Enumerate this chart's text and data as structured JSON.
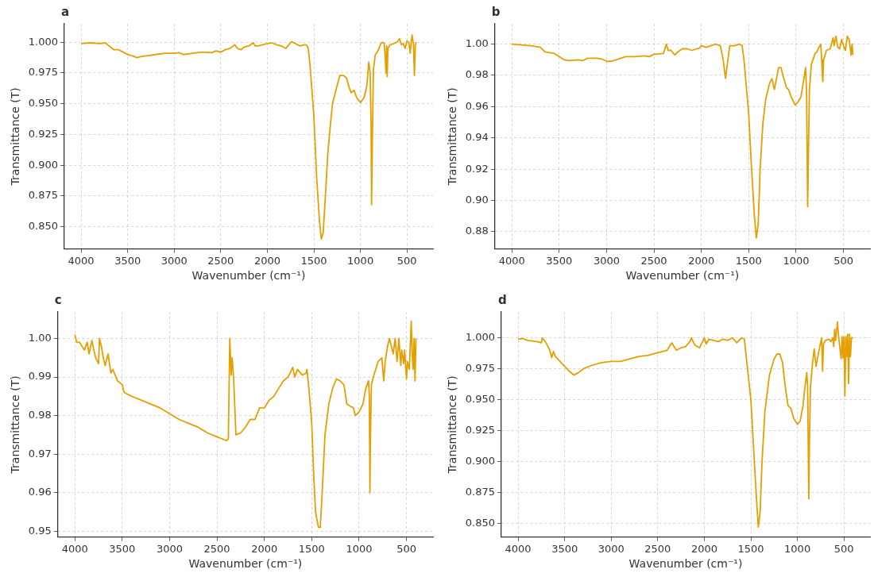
{
  "chart_data": [
    {
      "type": "line",
      "title": "a",
      "xlabel": "Wavenumber (cm⁻¹)",
      "ylabel": "Transmittance (T)",
      "color": "#e69f00",
      "grid": true,
      "xlim": [
        4180,
        220
      ],
      "xticks": [
        4000,
        3500,
        3000,
        2500,
        2000,
        1500,
        1000,
        500
      ],
      "ylim": [
        0.832,
        1.015
      ],
      "yticks": [
        {
          "value": 0.85,
          "label": "0.850"
        },
        {
          "value": 0.875,
          "label": "0.875"
        },
        {
          "value": 0.9,
          "label": "0.900"
        },
        {
          "value": 0.925,
          "label": "0.925"
        },
        {
          "value": 0.95,
          "label": "0.950"
        },
        {
          "value": 0.975,
          "label": "0.975"
        },
        {
          "value": 1.0,
          "label": "1.000"
        }
      ],
      "x": [
        4000,
        3900,
        3800,
        3740,
        3700,
        3650,
        3600,
        3550,
        3500,
        3450,
        3400,
        3350,
        3300,
        3200,
        3100,
        3000,
        2950,
        2900,
        2800,
        2700,
        2600,
        2550,
        2500,
        2450,
        2400,
        2350,
        2320,
        2280,
        2250,
        2200,
        2150,
        2130,
        2100,
        2050,
        2000,
        1950,
        1900,
        1850,
        1800,
        1780,
        1740,
        1700,
        1650,
        1600,
        1580,
        1560,
        1540,
        1500,
        1470,
        1440,
        1420,
        1400,
        1380,
        1350,
        1320,
        1300,
        1250,
        1220,
        1180,
        1150,
        1120,
        1100,
        1070,
        1040,
        1000,
        960,
        930,
        910,
        895,
        885,
        880,
        872,
        860,
        840,
        820,
        800,
        780,
        760,
        745,
        735,
        725,
        718,
        712,
        705,
        680,
        640,
        600,
        580,
        560,
        540,
        520,
        500,
        480,
        465,
        455,
        445,
        430,
        420,
        410,
        400
      ],
      "values": [
        0.999,
        0.9995,
        0.999,
        0.9995,
        0.997,
        0.994,
        0.994,
        0.992,
        0.99,
        0.989,
        0.9875,
        0.9885,
        0.989,
        0.99,
        0.991,
        0.991,
        0.9915,
        0.99,
        0.991,
        0.992,
        0.9915,
        0.993,
        0.992,
        0.994,
        0.995,
        0.998,
        0.995,
        0.994,
        0.996,
        0.997,
        0.9995,
        0.997,
        0.997,
        0.998,
        0.999,
        0.9995,
        0.998,
        0.997,
        0.995,
        0.997,
        1.0005,
        0.999,
        0.997,
        0.998,
        0.998,
        0.995,
        0.98,
        0.94,
        0.89,
        0.855,
        0.84,
        0.845,
        0.87,
        0.91,
        0.935,
        0.95,
        0.965,
        0.973,
        0.973,
        0.971,
        0.963,
        0.959,
        0.961,
        0.955,
        0.951,
        0.955,
        0.965,
        0.984,
        0.975,
        0.93,
        0.868,
        0.92,
        0.978,
        0.99,
        0.992,
        0.995,
        0.999,
        1.0,
        0.999,
        0.99,
        0.975,
        0.997,
        0.972,
        0.995,
        0.998,
        0.999,
        1.0005,
        1.003,
        0.998,
        0.999,
        0.995,
        1.001,
        1.0,
        0.991,
        1.0,
        1.006,
        0.998,
        0.973,
        0.998,
        1.0
      ]
    },
    {
      "type": "line",
      "title": "b",
      "xlabel": "Wavenumber (cm⁻¹)",
      "ylabel": "Transmittance (T)",
      "color": "#e69f00",
      "grid": true,
      "xlim": [
        4180,
        220
      ],
      "xticks": [
        4000,
        3500,
        3000,
        2500,
        2000,
        1500,
        1000,
        500
      ],
      "ylim": [
        0.869,
        1.013
      ],
      "yticks": [
        {
          "value": 0.88,
          "label": "0.88"
        },
        {
          "value": 0.9,
          "label": "0.90"
        },
        {
          "value": 0.92,
          "label": "0.92"
        },
        {
          "value": 0.94,
          "label": "0.94"
        },
        {
          "value": 0.96,
          "label": "0.96"
        },
        {
          "value": 0.98,
          "label": "0.98"
        },
        {
          "value": 1.0,
          "label": "1.00"
        }
      ],
      "x": [
        4000,
        3900,
        3800,
        3700,
        3650,
        3550,
        3500,
        3450,
        3400,
        3300,
        3250,
        3200,
        3100,
        3050,
        3000,
        2950,
        2900,
        2800,
        2700,
        2600,
        2550,
        2500,
        2400,
        2370,
        2350,
        2320,
        2280,
        2250,
        2200,
        2150,
        2100,
        2050,
        2020,
        2000,
        1950,
        1900,
        1850,
        1800,
        1770,
        1745,
        1720,
        1700,
        1650,
        1600,
        1570,
        1550,
        1500,
        1470,
        1440,
        1420,
        1400,
        1380,
        1350,
        1320,
        1280,
        1255,
        1230,
        1210,
        1185,
        1160,
        1130,
        1100,
        1080,
        1050,
        1010,
        980,
        950,
        920,
        900,
        890,
        878,
        870,
        860,
        840,
        800,
        780,
        760,
        740,
        730,
        725,
        718,
        710,
        680,
        640,
        610,
        600,
        580,
        560,
        540,
        520,
        500,
        480,
        460,
        440,
        420,
        410,
        400
      ],
      "values": [
        1.0,
        0.9995,
        0.999,
        0.998,
        0.995,
        0.994,
        0.992,
        0.99,
        0.9895,
        0.99,
        0.9895,
        0.991,
        0.991,
        0.9905,
        0.989,
        0.989,
        0.99,
        0.992,
        0.992,
        0.9925,
        0.992,
        0.9935,
        0.994,
        1.0,
        0.996,
        0.996,
        0.993,
        0.995,
        0.997,
        0.997,
        0.996,
        0.997,
        0.9975,
        0.999,
        0.998,
        0.999,
        1.0,
        0.999,
        0.99,
        0.978,
        0.99,
        0.999,
        0.999,
        1.0,
        0.999,
        0.99,
        0.955,
        0.92,
        0.89,
        0.876,
        0.885,
        0.92,
        0.95,
        0.965,
        0.975,
        0.978,
        0.971,
        0.977,
        0.985,
        0.985,
        0.978,
        0.972,
        0.971,
        0.966,
        0.961,
        0.963,
        0.966,
        0.977,
        0.985,
        0.97,
        0.896,
        0.93,
        0.97,
        0.987,
        0.994,
        0.995,
        0.998,
        1.0,
        0.99,
        0.982,
        0.976,
        0.99,
        0.996,
        0.997,
        1.004,
        0.999,
        1.005,
        0.998,
        0.997,
        1.003,
        0.999,
        0.996,
        1.005,
        1.003,
        0.993,
        1.0,
        0.993
      ]
    },
    {
      "type": "line",
      "title": "c",
      "xlabel": "Wavenumber (cm⁻¹)",
      "ylabel": "Transmittance (T)",
      "color": "#e69f00",
      "grid": true,
      "xlim": [
        4180,
        220
      ],
      "xticks": [
        4000,
        3500,
        3000,
        2500,
        2000,
        1500,
        1000,
        500
      ],
      "ylim": [
        0.9485,
        1.0069
      ],
      "yticks": [
        {
          "value": 0.95,
          "label": "0.95"
        },
        {
          "value": 0.96,
          "label": "0.96"
        },
        {
          "value": 0.97,
          "label": "0.97"
        },
        {
          "value": 0.98,
          "label": "0.98"
        },
        {
          "value": 0.99,
          "label": "0.99"
        },
        {
          "value": 1.0,
          "label": "1.00"
        }
      ],
      "x": [
        4000,
        3980,
        3950,
        3900,
        3870,
        3850,
        3820,
        3800,
        3780,
        3750,
        3740,
        3720,
        3700,
        3680,
        3650,
        3620,
        3600,
        3550,
        3500,
        3480,
        3400,
        3300,
        3200,
        3100,
        3000,
        2900,
        2800,
        2700,
        2600,
        2500,
        2450,
        2400,
        2380,
        2365,
        2350,
        2340,
        2325,
        2300,
        2250,
        2200,
        2150,
        2100,
        2050,
        2000,
        1950,
        1900,
        1850,
        1800,
        1750,
        1700,
        1680,
        1650,
        1600,
        1560,
        1550,
        1530,
        1500,
        1480,
        1460,
        1430,
        1410,
        1390,
        1360,
        1320,
        1280,
        1240,
        1200,
        1160,
        1130,
        1100,
        1060,
        1040,
        1000,
        960,
        930,
        900,
        892,
        886,
        880,
        870,
        850,
        800,
        760,
        740,
        725,
        700,
        680,
        660,
        640,
        620,
        600,
        580,
        560,
        550,
        530,
        520,
        500,
        490,
        470,
        450,
        440,
        430,
        420,
        410,
        400
      ],
      "values": [
        1.001,
        0.999,
        0.999,
        0.997,
        0.999,
        0.996,
        0.9995,
        0.997,
        0.995,
        0.9935,
        1.0,
        0.998,
        0.995,
        0.993,
        0.996,
        0.991,
        0.992,
        0.989,
        0.988,
        0.986,
        0.985,
        0.984,
        0.983,
        0.982,
        0.9805,
        0.979,
        0.978,
        0.977,
        0.9755,
        0.9745,
        0.974,
        0.9735,
        0.974,
        1.0,
        0.9905,
        0.995,
        0.99,
        0.975,
        0.9755,
        0.977,
        0.979,
        0.979,
        0.982,
        0.982,
        0.984,
        0.985,
        0.987,
        0.989,
        0.99,
        0.9925,
        0.99,
        0.992,
        0.9905,
        0.991,
        0.992,
        0.987,
        0.978,
        0.965,
        0.955,
        0.951,
        0.951,
        0.96,
        0.975,
        0.983,
        0.987,
        0.9895,
        0.989,
        0.988,
        0.983,
        0.9825,
        0.982,
        0.98,
        0.981,
        0.983,
        0.987,
        0.989,
        0.985,
        0.96,
        0.975,
        0.988,
        0.99,
        0.994,
        0.995,
        0.989,
        0.994,
        0.998,
        1.0,
        0.998,
        0.996,
        1.0,
        0.994,
        1.0,
        0.993,
        0.997,
        0.9935,
        0.997,
        0.9895,
        0.994,
        0.992,
        1.0045,
        0.996,
        0.992,
        1.0,
        0.989,
        1.0
      ]
    },
    {
      "type": "line",
      "title": "d",
      "xlabel": "Wavenumber (cm⁻¹)",
      "ylabel": "Transmittance (T)",
      "color": "#e69f00",
      "grid": true,
      "xlim": [
        4180,
        220
      ],
      "xticks": [
        4000,
        3500,
        3000,
        2500,
        2000,
        1500,
        1000,
        500
      ],
      "ylim": [
        0.839,
        1.021
      ],
      "yticks": [
        {
          "value": 0.85,
          "label": "0.850"
        },
        {
          "value": 0.875,
          "label": "0.875"
        },
        {
          "value": 0.9,
          "label": "0.900"
        },
        {
          "value": 0.925,
          "label": "0.925"
        },
        {
          "value": 0.95,
          "label": "0.950"
        },
        {
          "value": 0.975,
          "label": "0.975"
        },
        {
          "value": 1.0,
          "label": "1.000"
        }
      ],
      "x": [
        4000,
        3950,
        3900,
        3800,
        3750,
        3740,
        3700,
        3660,
        3640,
        3620,
        3600,
        3550,
        3500,
        3450,
        3400,
        3350,
        3300,
        3200,
        3100,
        3000,
        2900,
        2800,
        2700,
        2600,
        2500,
        2400,
        2350,
        2300,
        2250,
        2200,
        2150,
        2140,
        2100,
        2050,
        2000,
        1980,
        1950,
        1900,
        1850,
        1800,
        1750,
        1700,
        1650,
        1600,
        1570,
        1550,
        1500,
        1470,
        1440,
        1420,
        1400,
        1380,
        1350,
        1300,
        1250,
        1220,
        1190,
        1160,
        1130,
        1100,
        1070,
        1040,
        1000,
        970,
        940,
        920,
        900,
        890,
        878,
        870,
        860,
        840,
        820,
        800,
        780,
        760,
        740,
        730,
        720,
        700,
        660,
        640,
        620,
        610,
        600,
        590,
        570,
        560,
        550,
        530,
        520,
        510,
        500,
        490,
        480,
        470,
        460,
        450,
        440,
        430,
        420,
        400
      ],
      "values": [
        0.999,
        0.9995,
        0.998,
        0.997,
        0.996,
        1.0,
        0.996,
        0.99,
        0.984,
        0.989,
        0.985,
        0.981,
        0.977,
        0.973,
        0.97,
        0.972,
        0.975,
        0.978,
        0.98,
        0.981,
        0.981,
        0.983,
        0.985,
        0.986,
        0.988,
        0.99,
        0.996,
        0.99,
        0.992,
        0.993,
        0.9975,
        1.0,
        0.994,
        0.992,
        1.0,
        0.995,
        0.999,
        0.998,
        0.997,
        0.999,
        0.998,
        1.0,
        0.996,
        1.0,
        0.999,
        0.985,
        0.95,
        0.91,
        0.87,
        0.847,
        0.86,
        0.9,
        0.94,
        0.97,
        0.983,
        0.987,
        0.987,
        0.98,
        0.96,
        0.945,
        0.943,
        0.935,
        0.93,
        0.933,
        0.945,
        0.96,
        0.972,
        0.96,
        0.87,
        0.92,
        0.96,
        0.978,
        0.991,
        0.977,
        0.985,
        0.993,
        1.0,
        0.973,
        0.995,
        0.998,
        0.999,
        0.997,
        1.0,
        0.993,
        1.007,
        0.998,
        1.013,
        1.003,
        0.996,
        0.983,
        1.001,
        0.984,
        1.001,
        0.953,
        1.001,
        0.985,
        1.003,
        0.963,
        1.003,
        0.985,
        1.0,
        1.0
      ]
    }
  ]
}
